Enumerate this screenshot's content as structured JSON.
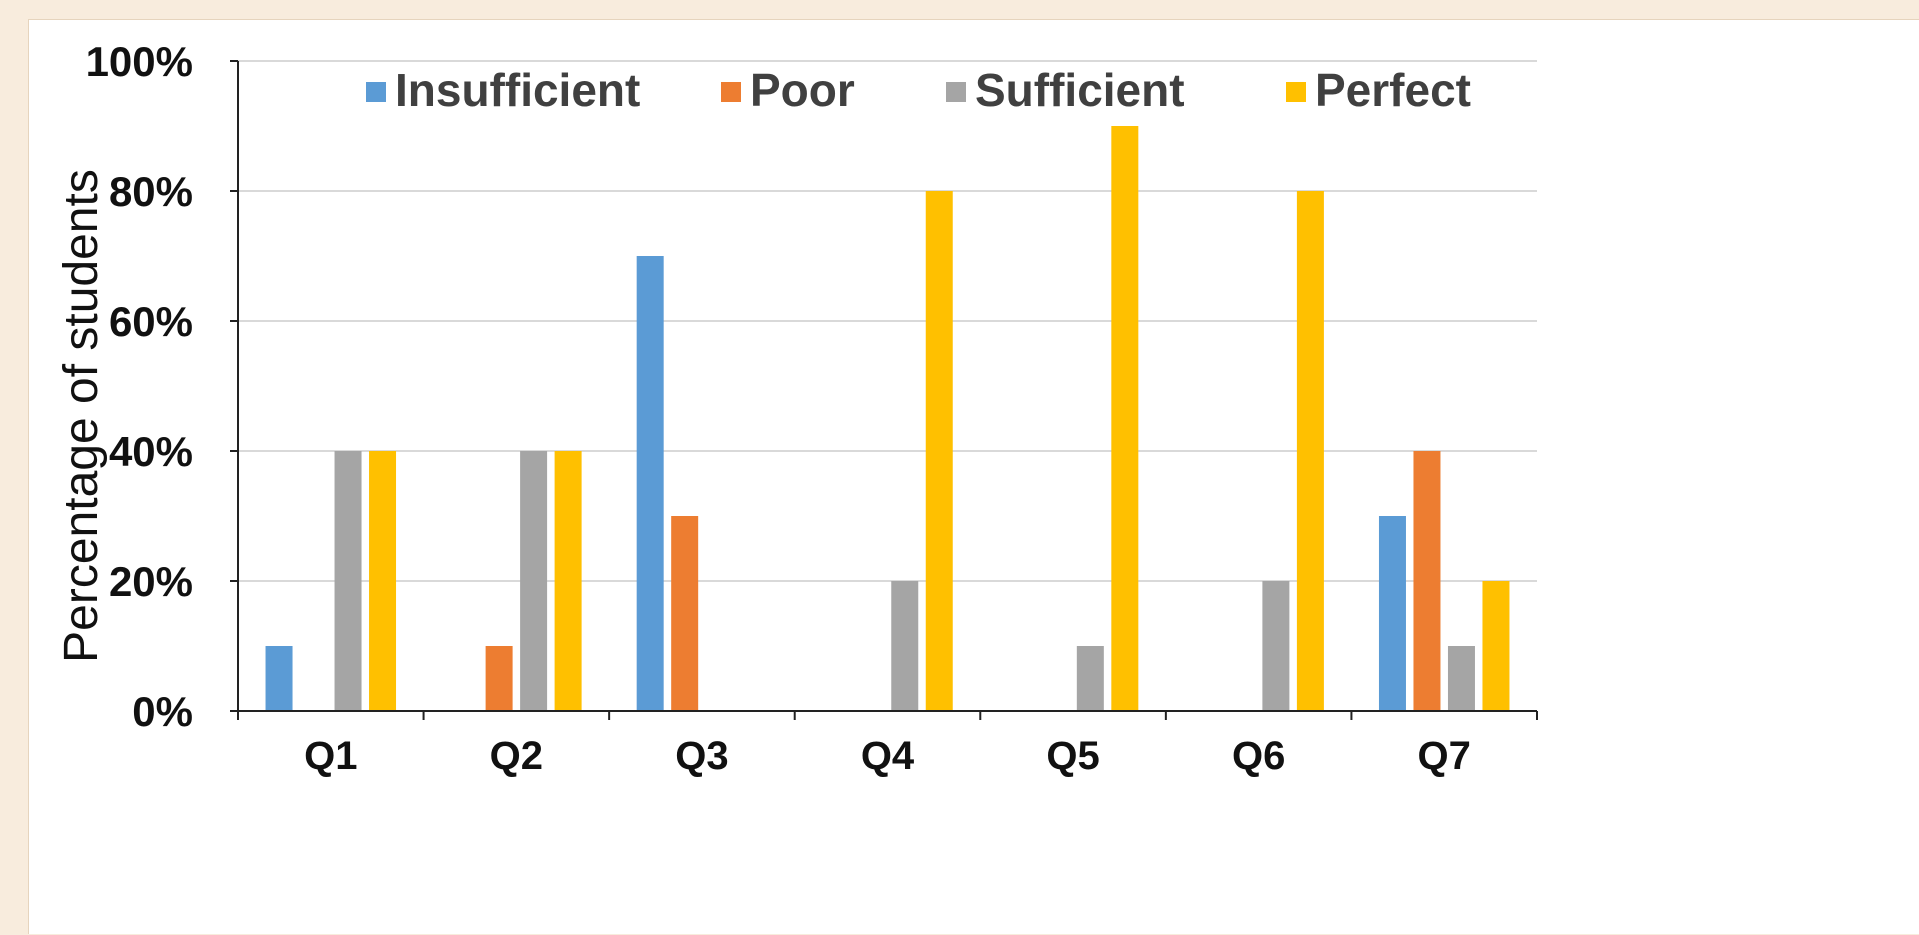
{
  "chart_data": {
    "type": "bar",
    "title": "",
    "xlabel": "",
    "ylabel": "Percentage of students",
    "ylim": [
      0,
      100
    ],
    "y_ticks": [
      "0%",
      "20%",
      "40%",
      "60%",
      "80%",
      "100%"
    ],
    "y_tick_values": [
      0,
      20,
      40,
      60,
      80,
      100
    ],
    "grid": true,
    "legend_placement": "top",
    "categories": [
      "Q1",
      "Q2",
      "Q3",
      "Q4",
      "Q5",
      "Q6",
      "Q7"
    ],
    "series": [
      {
        "name": "Insufficient",
        "color": "#5b9bd5",
        "values": [
          10,
          0,
          70,
          0,
          0,
          0,
          30
        ]
      },
      {
        "name": "Poor",
        "color": "#ed7d31",
        "values": [
          0,
          10,
          30,
          0,
          0,
          0,
          40
        ]
      },
      {
        "name": "Sufficient",
        "color": "#a5a5a5",
        "values": [
          40,
          40,
          0,
          20,
          10,
          20,
          10
        ]
      },
      {
        "name": "Perfect",
        "color": "#ffc000",
        "values": [
          40,
          40,
          0,
          80,
          90,
          80,
          20
        ]
      }
    ]
  }
}
